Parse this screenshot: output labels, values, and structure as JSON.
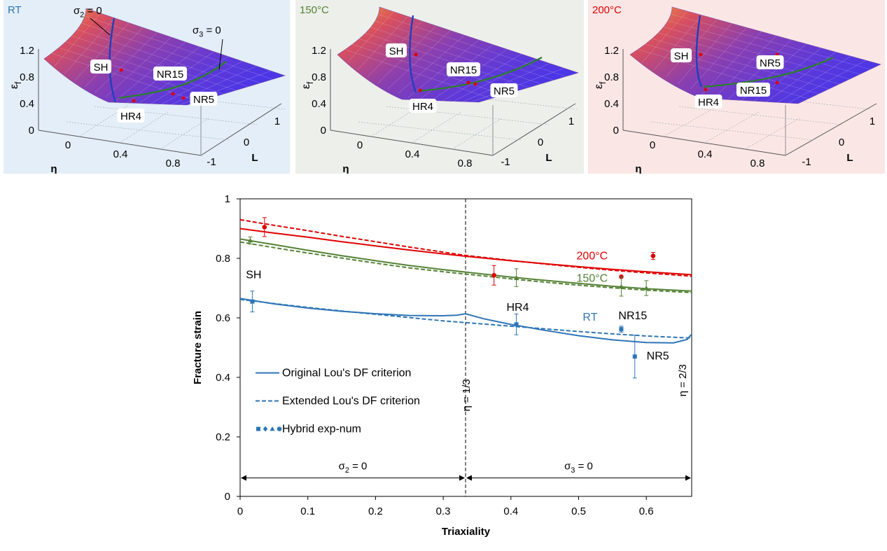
{
  "panels": [
    {
      "title": "RT",
      "title_color": "#2E75B6",
      "bg": "#E3EEF8",
      "y_ticks": [
        "0",
        "0.4",
        "0.8",
        "1.2"
      ],
      "x_ticks": [
        "0",
        "0.4",
        "0.8"
      ],
      "l_ticks": [
        "1",
        "0",
        "-1"
      ],
      "y_label": "ε",
      "y_label_sub": "f",
      "x_label": "η",
      "l_label": "L",
      "curve_labels": [
        {
          "main": "σ",
          "sub": "2",
          "rest": " = 0"
        },
        {
          "main": "σ",
          "sub": "3",
          "rest": " = 0"
        }
      ],
      "point_labels": [
        "SH",
        "NR15",
        "NR5",
        "HR4"
      ]
    },
    {
      "title": "150°C",
      "title_color": "#548235",
      "bg": "#EDEFEA",
      "y_ticks": [
        "0",
        "0.4",
        "0.8",
        "1.2"
      ],
      "x_ticks": [
        "0",
        "0.4",
        "0.8"
      ],
      "l_ticks": [
        "1",
        "0",
        "-1"
      ],
      "y_label": "ε",
      "y_label_sub": "f",
      "x_label": "η",
      "l_label": "L",
      "point_labels": [
        "SH",
        "NR15",
        "NR5",
        "HR4"
      ]
    },
    {
      "title": "200°C",
      "title_color": "#E00000",
      "bg": "#FBE6E6",
      "y_ticks": [
        "0",
        "0.4",
        "0.8",
        "1.2"
      ],
      "x_ticks": [
        "0",
        "0.4",
        "0.8"
      ],
      "l_ticks": [
        "1",
        "0",
        "-1"
      ],
      "y_label": "ε",
      "y_label_sub": "f",
      "x_label": "η",
      "l_label": "L",
      "point_labels": [
        "SH",
        "NR5",
        "NR15",
        "HR4"
      ]
    }
  ],
  "colors": {
    "rt": "#2E75B6",
    "c150": "#548235",
    "c200": "#E00000",
    "sigma_line": "#1F3FBF",
    "sigma3_line": "#2E7D32"
  },
  "chart_data": {
    "type": "line",
    "xlabel": "Triaxiality",
    "ylabel": "Fracture strain",
    "xlim": [
      0,
      0.667
    ],
    "ylim": [
      0,
      1
    ],
    "x_ticks": [
      0,
      0.1,
      0.2,
      0.3,
      0.4,
      0.5,
      0.6
    ],
    "y_ticks": [
      0,
      0.2,
      0.4,
      0.6,
      0.8,
      1
    ],
    "grid": false,
    "series": [
      {
        "name": "200°C",
        "group": "200",
        "style": "solid",
        "x": [
          0,
          0.05,
          0.1,
          0.15,
          0.2,
          0.25,
          0.3,
          0.333,
          0.4,
          0.45,
          0.5,
          0.55,
          0.6,
          0.667
        ],
        "y": [
          0.9,
          0.885,
          0.871,
          0.856,
          0.842,
          0.828,
          0.815,
          0.807,
          0.792,
          0.782,
          0.772,
          0.763,
          0.755,
          0.745
        ]
      },
      {
        "group": "200",
        "style": "dashed",
        "x": [
          0,
          0.05,
          0.1,
          0.15,
          0.2,
          0.25,
          0.3,
          0.333,
          0.4,
          0.45,
          0.5,
          0.55,
          0.6,
          0.667
        ],
        "y": [
          0.93,
          0.911,
          0.893,
          0.874,
          0.856,
          0.838,
          0.821,
          0.81,
          0.793,
          0.781,
          0.77,
          0.76,
          0.751,
          0.74
        ]
      },
      {
        "name": "150°C",
        "group": "150",
        "style": "solid",
        "x": [
          0,
          0.05,
          0.1,
          0.15,
          0.2,
          0.25,
          0.3,
          0.333,
          0.4,
          0.45,
          0.5,
          0.55,
          0.6,
          0.667
        ],
        "y": [
          0.865,
          0.846,
          0.827,
          0.809,
          0.792,
          0.776,
          0.762,
          0.754,
          0.737,
          0.726,
          0.716,
          0.706,
          0.698,
          0.69
        ]
      },
      {
        "group": "150",
        "style": "dashed",
        "x": [
          0,
          0.05,
          0.1,
          0.15,
          0.2,
          0.25,
          0.3,
          0.333,
          0.4,
          0.45,
          0.5,
          0.55,
          0.6,
          0.667
        ],
        "y": [
          0.855,
          0.836,
          0.818,
          0.801,
          0.784,
          0.768,
          0.755,
          0.747,
          0.731,
          0.72,
          0.71,
          0.701,
          0.693,
          0.685
        ]
      },
      {
        "name": "RT",
        "group": "rt",
        "style": "solid",
        "x": [
          0,
          0.05,
          0.1,
          0.15,
          0.2,
          0.25,
          0.3,
          0.32,
          0.333,
          0.36,
          0.4,
          0.45,
          0.5,
          0.55,
          0.6,
          0.64,
          0.66,
          0.667
        ],
        "y": [
          0.665,
          0.647,
          0.633,
          0.622,
          0.614,
          0.608,
          0.607,
          0.609,
          0.614,
          0.597,
          0.578,
          0.558,
          0.54,
          0.526,
          0.517,
          0.516,
          0.527,
          0.545
        ]
      },
      {
        "group": "rt",
        "style": "dashed",
        "x": [
          0,
          0.05,
          0.1,
          0.15,
          0.2,
          0.25,
          0.3,
          0.333,
          0.4,
          0.45,
          0.5,
          0.55,
          0.6,
          0.667
        ],
        "y": [
          0.662,
          0.648,
          0.635,
          0.623,
          0.612,
          0.601,
          0.59,
          0.584,
          0.572,
          0.563,
          0.554,
          0.546,
          0.539,
          0.532
        ]
      }
    ],
    "points": [
      {
        "group": "200",
        "shape": "circle",
        "x": 0.036,
        "y": 0.905,
        "err": 0.032
      },
      {
        "group": "200",
        "shape": "circle",
        "x": 0.375,
        "y": 0.743,
        "err": 0.033
      },
      {
        "group": "200",
        "shape": "circle",
        "x": 0.563,
        "y": 0.738,
        "err": 0
      },
      {
        "group": "200",
        "shape": "circle",
        "x": 0.61,
        "y": 0.808,
        "err": 0.012
      },
      {
        "group": "150",
        "shape": "triangle",
        "x": 0.015,
        "y": 0.86,
        "err": 0.012
      },
      {
        "group": "150",
        "shape": "triangle",
        "x": 0.408,
        "y": 0.735,
        "err": 0.03
      },
      {
        "group": "150",
        "shape": "triangle",
        "x": 0.563,
        "y": 0.705,
        "err": 0.032
      },
      {
        "group": "150",
        "shape": "triangle",
        "x": 0.6,
        "y": 0.7,
        "err": 0.025
      },
      {
        "group": "rt",
        "shape": "square",
        "x": 0.018,
        "y": 0.655,
        "err": 0.035
      },
      {
        "group": "rt",
        "shape": "square",
        "x": 0.408,
        "y": 0.578,
        "err": 0.035
      },
      {
        "group": "rt",
        "shape": "square",
        "x": 0.563,
        "y": 0.562,
        "err": 0.01
      },
      {
        "group": "rt",
        "shape": "square",
        "x": 0.583,
        "y": 0.47,
        "err": 0.072
      }
    ],
    "vlines": [
      {
        "x": 0.333,
        "label": "η = 1/3"
      },
      {
        "x": 0.667,
        "label": "η = 2/3"
      }
    ],
    "annotations": [
      {
        "text": "SH",
        "x": 0.02,
        "y": 0.745
      },
      {
        "text": "HR4",
        "x": 0.41,
        "y": 0.635
      },
      {
        "text": "NR15",
        "x": 0.58,
        "y": 0.607
      },
      {
        "text": "NR5",
        "x": 0.617,
        "y": 0.472
      },
      {
        "text": "200°C",
        "x": 0.52,
        "y": 0.808,
        "group": "200"
      },
      {
        "text": "150°C",
        "x": 0.52,
        "y": 0.733,
        "group": "150"
      },
      {
        "text": "RT",
        "x": 0.517,
        "y": 0.602,
        "group": "rt"
      }
    ],
    "regions": [
      {
        "label_main": "σ",
        "label_sub": "2",
        "label_rest": " = 0",
        "x0": 0,
        "x1": 0.333,
        "y": 0.062
      },
      {
        "label_main": "σ",
        "label_sub": "3",
        "label_rest": " = 0",
        "x0": 0.333,
        "x1": 0.667,
        "y": 0.062
      }
    ],
    "legend": {
      "placement": "bottom-left",
      "entries": [
        {
          "label": "Original Lou's DF criterion",
          "style": "solid"
        },
        {
          "label": "Extended Lou's DF criterion",
          "style": "dashed"
        },
        {
          "label": "Hybrid exp-num",
          "style": "markers"
        }
      ]
    }
  }
}
